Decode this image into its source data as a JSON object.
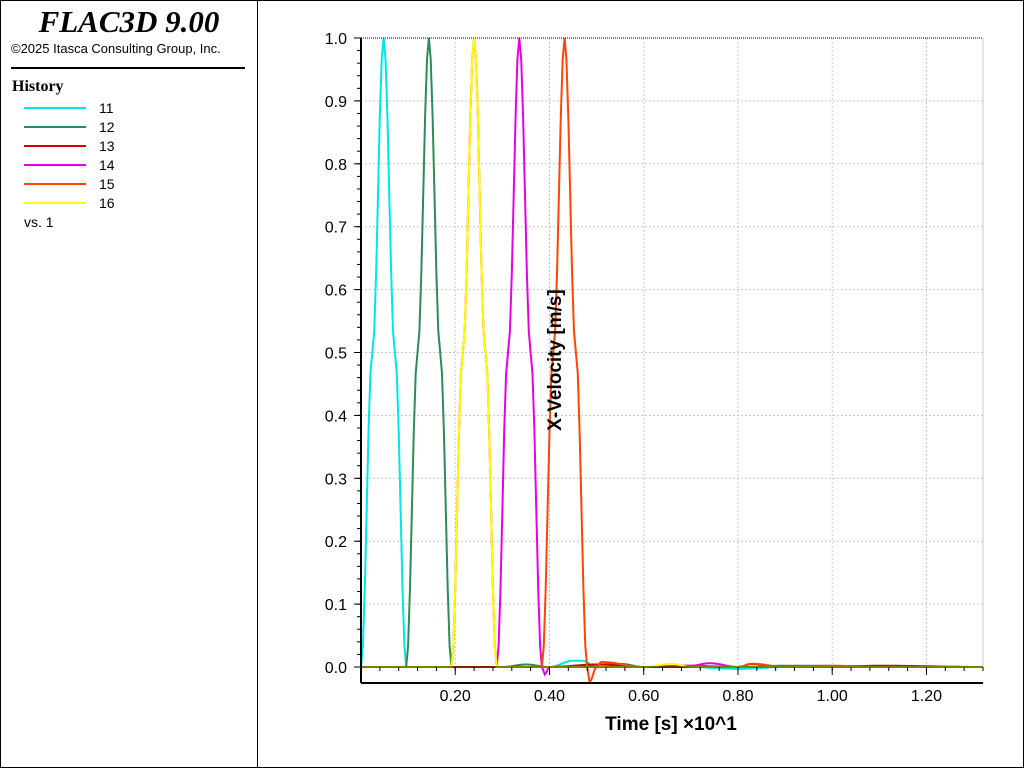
{
  "app": {
    "title": "FLAC3D 9.00",
    "copyright": "©2025 Itasca Consulting Group, Inc."
  },
  "legend": {
    "title": "History",
    "items": [
      {
        "label": "11",
        "color": "#00e5e5"
      },
      {
        "label": "12",
        "color": "#2e8b57"
      },
      {
        "label": "13",
        "color": "#d40000"
      },
      {
        "label": "14",
        "color": "#e600e6"
      },
      {
        "label": "15",
        "color": "#ff4500"
      },
      {
        "label": "16",
        "color": "#ffff00"
      }
    ],
    "vs_label": "vs. 1"
  },
  "chart_data": {
    "type": "line",
    "xlabel": "Time [s] ×10^1",
    "ylabel": "X-Velocity [m/s]",
    "xlim": [
      0.0,
      1.32
    ],
    "ylim": [
      0.0,
      1.0
    ],
    "x_ticks": [
      "0.20",
      "0.40",
      "0.60",
      "0.80",
      "1.00",
      "1.20"
    ],
    "y_ticks": [
      "0.0",
      "0.1",
      "0.2",
      "0.3",
      "0.4",
      "0.5",
      "0.6",
      "0.7",
      "0.8",
      "0.9",
      "1.0"
    ],
    "grid": true,
    "series": [
      {
        "name": "11",
        "color": "#00e5e5",
        "x": [
          0.0,
          0.024,
          0.048,
          0.072,
          0.096,
          0.2,
          0.3,
          0.4,
          0.45,
          0.47,
          0.5,
          0.6,
          0.7,
          0.8,
          0.9,
          1.0,
          1.32
        ],
        "y": [
          0.0,
          0.5,
          1.0,
          0.5,
          0.0,
          0.0,
          0.0,
          0.0,
          0.01,
          0.01,
          0.0,
          0.0,
          0.0,
          -0.003,
          0.0,
          0.0,
          0.0
        ]
      },
      {
        "name": "12",
        "color": "#2e8b57",
        "x": [
          0.0,
          0.096,
          0.12,
          0.144,
          0.168,
          0.192,
          0.3,
          0.35,
          0.4,
          0.55,
          0.6,
          0.7,
          0.8,
          0.9,
          1.32
        ],
        "y": [
          0.0,
          0.0,
          0.5,
          1.0,
          0.5,
          0.0,
          0.0,
          0.004,
          0.0,
          0.005,
          0.0,
          0.002,
          0.0,
          0.002,
          0.0
        ]
      },
      {
        "name": "13",
        "color": "#d40000",
        "x": [
          0.0,
          0.192,
          0.216,
          0.24,
          0.264,
          0.288,
          0.4,
          0.5,
          0.6,
          0.7,
          0.8,
          0.83,
          0.9,
          1.0,
          1.1,
          1.32
        ],
        "y": [
          0.0,
          0.0,
          0.5,
          1.0,
          0.5,
          0.0,
          0.0,
          0.004,
          0.0,
          0.0,
          0.0,
          0.005,
          0.0,
          0.0,
          0.002,
          0.0
        ]
      },
      {
        "name": "14",
        "color": "#e600e6",
        "x": [
          0.0,
          0.288,
          0.312,
          0.336,
          0.36,
          0.384,
          0.39,
          0.4,
          0.5,
          0.6,
          0.7,
          0.74,
          0.8,
          0.9,
          1.32
        ],
        "y": [
          0.0,
          0.0,
          0.5,
          1.0,
          0.5,
          0.0,
          -0.012,
          0.0,
          0.0,
          0.0,
          0.002,
          0.006,
          0.0,
          0.0,
          0.0
        ]
      },
      {
        "name": "15",
        "color": "#ff4500",
        "x": [
          0.0,
          0.384,
          0.408,
          0.432,
          0.456,
          0.48,
          0.485,
          0.5,
          0.51,
          0.6,
          0.7,
          0.8,
          0.83,
          0.9,
          1.0,
          1.1,
          1.32
        ],
        "y": [
          0.0,
          0.0,
          0.5,
          1.0,
          0.5,
          0.0,
          -0.024,
          0.0,
          0.008,
          0.0,
          0.0,
          0.0,
          0.005,
          0.0,
          0.002,
          0.0,
          0.0
        ]
      },
      {
        "name": "16",
        "color": "#ffff00",
        "x": [
          0.0,
          0.192,
          0.216,
          0.24,
          0.264,
          0.288,
          0.4,
          0.5,
          0.6,
          0.66,
          0.7,
          0.8,
          0.9,
          1.32
        ],
        "y": [
          0.0,
          0.0,
          0.5,
          1.0,
          0.5,
          0.0,
          0.0,
          0.0,
          0.0,
          0.005,
          0.0,
          0.0,
          0.0,
          0.0
        ]
      }
    ]
  }
}
